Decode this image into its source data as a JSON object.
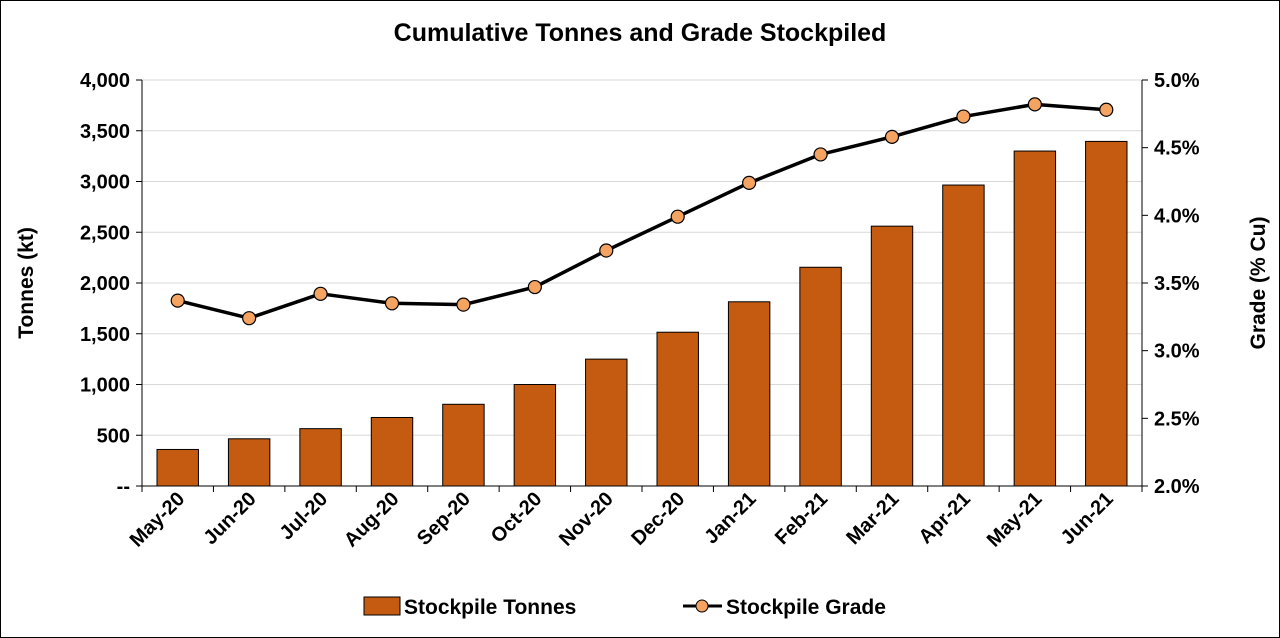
{
  "chart_data": {
    "type": "bar",
    "title": "Cumulative Tonnes and Grade Stockpiled",
    "categories": [
      "May-20",
      "Jun-20",
      "Jul-20",
      "Aug-20",
      "Sep-20",
      "Oct-20",
      "Nov-20",
      "Dec-20",
      "Jan-21",
      "Feb-21",
      "Mar-21",
      "Apr-21",
      "May-21",
      "Jun-21"
    ],
    "ylabel": "Tonnes (kt)",
    "ylim": [
      0,
      4000
    ],
    "y_ticks": [
      0,
      500,
      1000,
      1500,
      2000,
      2500,
      3000,
      3500,
      4000
    ],
    "y_tick_labels": [
      "--",
      "500",
      "1,000",
      "1,500",
      "2,000",
      "2,500",
      "3,000",
      "3,500",
      "4,000"
    ],
    "y2label": "Grade (% Cu)",
    "y2lim": [
      2.0,
      5.0
    ],
    "y2_ticks": [
      2.0,
      2.5,
      3.0,
      3.5,
      4.0,
      4.5,
      5.0
    ],
    "y2_tick_labels": [
      "2.0%",
      "2.5%",
      "3.0%",
      "3.5%",
      "4.0%",
      "4.5%",
      "5.0%"
    ],
    "grid": true,
    "legend_position": "bottom",
    "series": [
      {
        "name": "Stockpile Tonnes",
        "type": "bar",
        "axis": "left",
        "color": "#C55A11",
        "values": [
          360,
          465,
          565,
          675,
          805,
          1000,
          1250,
          1515,
          1815,
          2155,
          2560,
          2965,
          3300,
          3395
        ]
      },
      {
        "name": "Stockpile Grade",
        "type": "line",
        "axis": "right",
        "line_color": "#000000",
        "marker_color": "#F4A460",
        "values": [
          3.37,
          3.24,
          3.42,
          3.35,
          3.34,
          3.47,
          3.74,
          3.99,
          4.24,
          4.45,
          4.58,
          4.73,
          4.82,
          4.78
        ]
      }
    ]
  }
}
